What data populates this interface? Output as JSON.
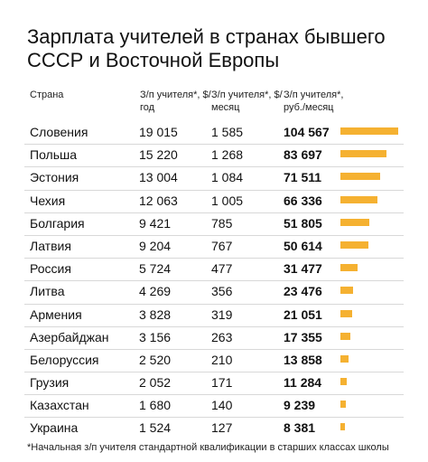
{
  "title": "Зарплата учителей в странах бывшего СССР и Восточной Европы",
  "footnote": "*Начальная з/п учителя стандартной квалификации в старших классах школы",
  "chart_data": {
    "type": "table",
    "columns": [
      "Страна",
      "З/п учителя*, $/год",
      "З/п учителя*, $/месяц",
      "З/п учителя*, руб./месяц"
    ],
    "bar_color": "#f5b131",
    "rows": [
      {
        "country": "Словения",
        "usd_year": "19 015",
        "usd_month": "1 585",
        "rub_month": "104 567",
        "value": 104567
      },
      {
        "country": "Польша",
        "usd_year": "15 220",
        "usd_month": "1 268",
        "rub_month": "83 697",
        "value": 83697
      },
      {
        "country": "Эстония",
        "usd_year": "13 004",
        "usd_month": "1 084",
        "rub_month": "71 511",
        "value": 71511
      },
      {
        "country": "Чехия",
        "usd_year": "12 063",
        "usd_month": "1 005",
        "rub_month": "66 336",
        "value": 66336
      },
      {
        "country": "Болгария",
        "usd_year": "9 421",
        "usd_month": "785",
        "rub_month": "51 805",
        "value": 51805
      },
      {
        "country": "Латвия",
        "usd_year": "9 204",
        "usd_month": "767",
        "rub_month": "50 614",
        "value": 50614
      },
      {
        "country": "Россия",
        "usd_year": "5 724",
        "usd_month": "477",
        "rub_month": "31 477",
        "value": 31477
      },
      {
        "country": "Литва",
        "usd_year": "4 269",
        "usd_month": "356",
        "rub_month": "23 476",
        "value": 23476
      },
      {
        "country": "Армения",
        "usd_year": "3 828",
        "usd_month": "319",
        "rub_month": "21 051",
        "value": 21051
      },
      {
        "country": "Азербайджан",
        "usd_year": "3 156",
        "usd_month": "263",
        "rub_month": "17 355",
        "value": 17355
      },
      {
        "country": "Белоруссия",
        "usd_year": "2 520",
        "usd_month": "210",
        "rub_month": "13 858",
        "value": 13858
      },
      {
        "country": "Грузия",
        "usd_year": "2 052",
        "usd_month": "171",
        "rub_month": "11 284",
        "value": 11284
      },
      {
        "country": "Казахстан",
        "usd_year": "1 680",
        "usd_month": "140",
        "rub_month": "9 239",
        "value": 9239
      },
      {
        "country": "Украина",
        "usd_year": "1 524",
        "usd_month": "127",
        "rub_month": "8 381",
        "value": 8381
      }
    ]
  }
}
